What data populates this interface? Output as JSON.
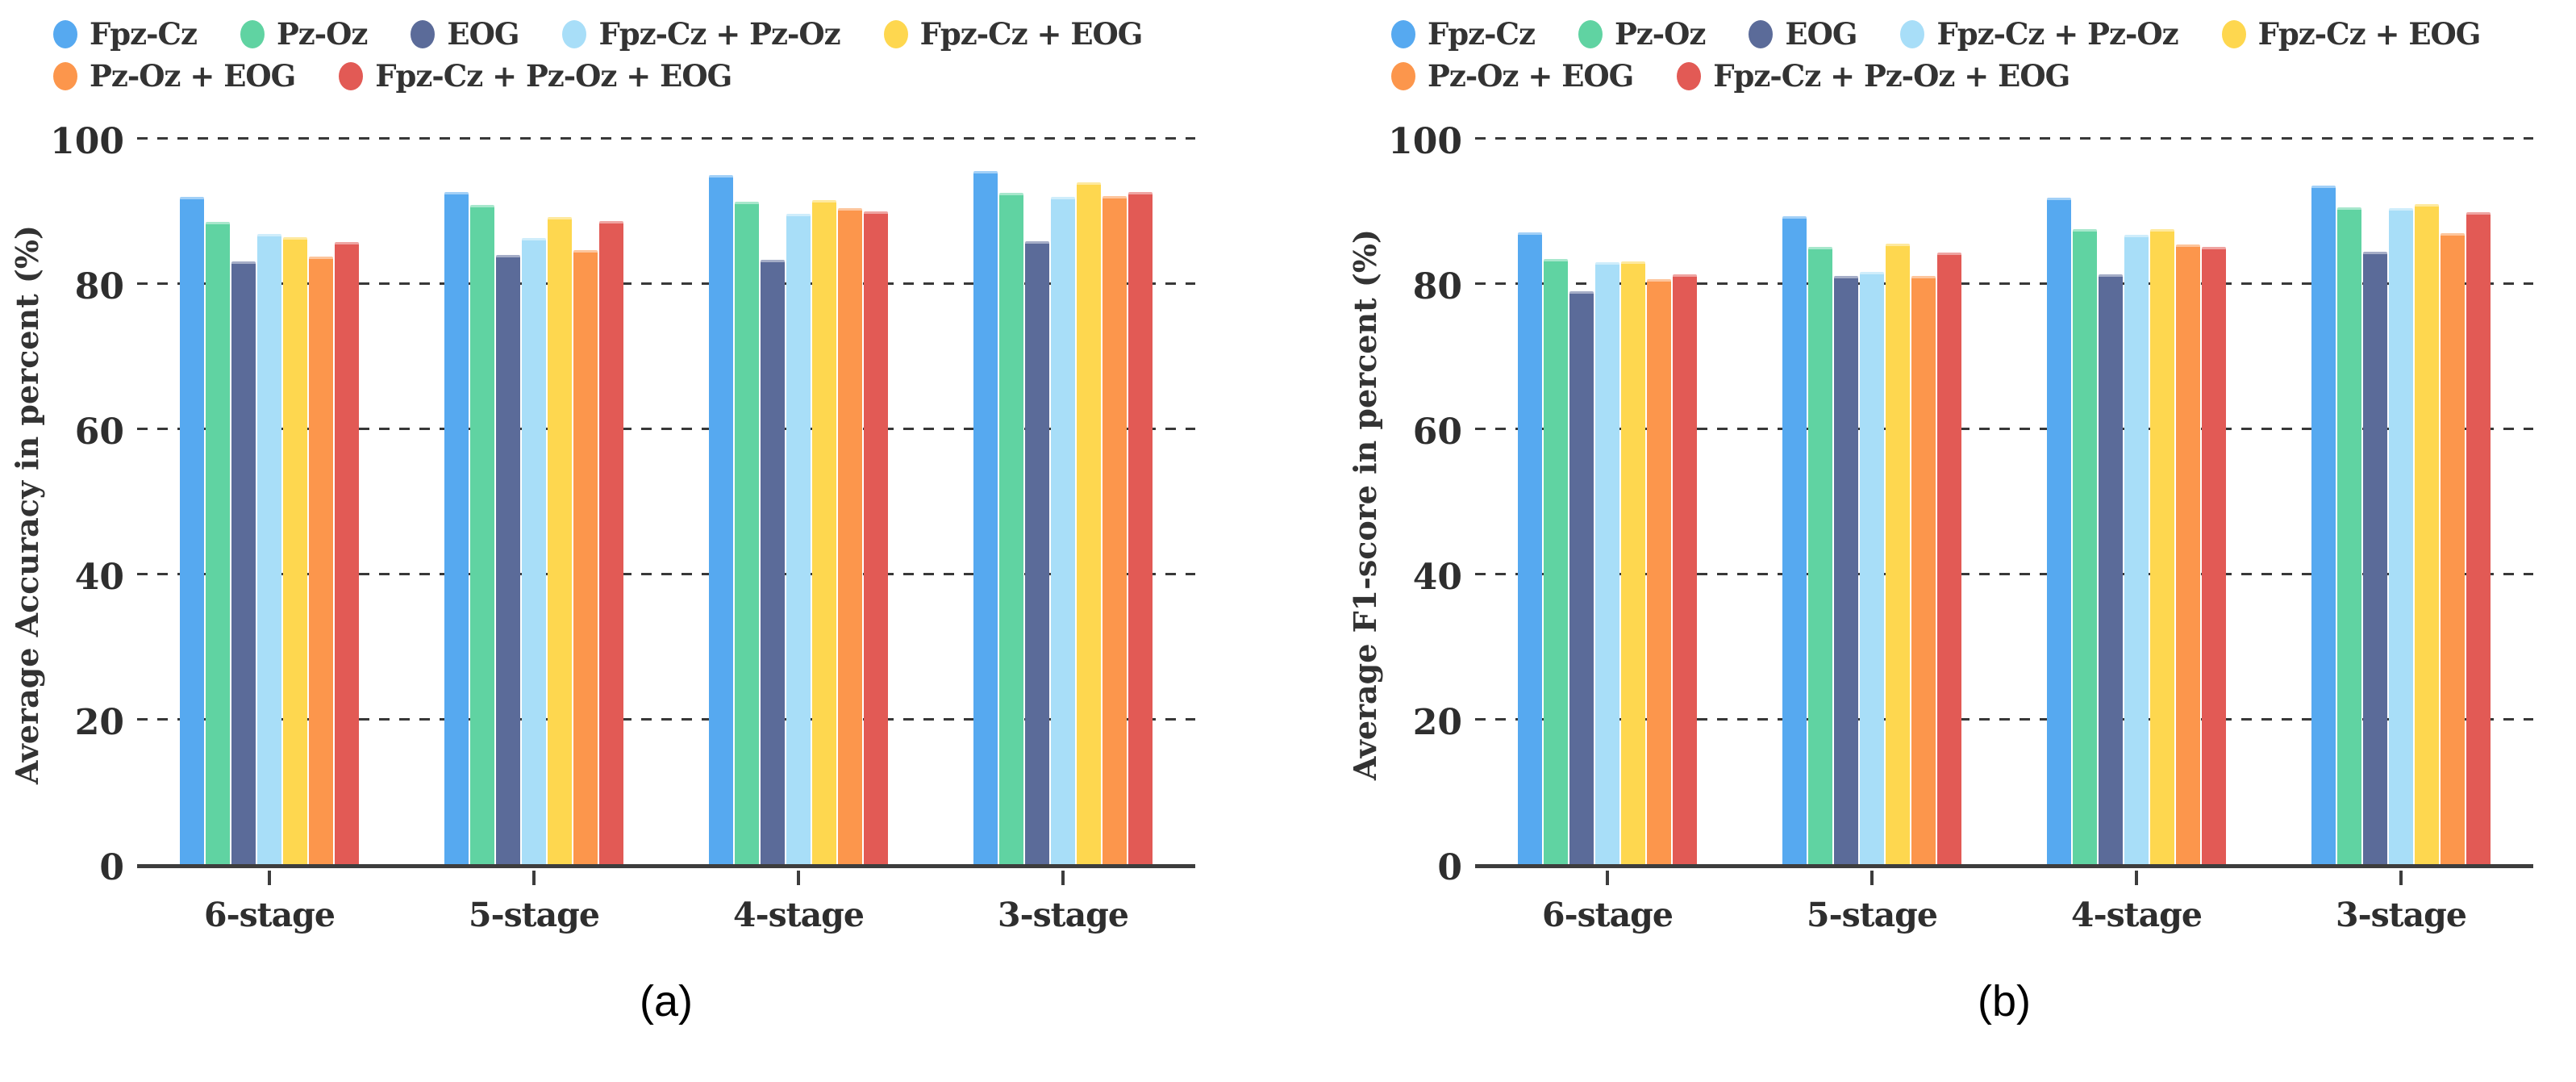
{
  "colors": {
    "axis": "#3d3d3d",
    "text": "#2e2e2e",
    "background": "#ffffff"
  },
  "chart_data": [
    {
      "type": "bar",
      "title": "",
      "ylabel": "Average Accuracy in percent (%)",
      "xlabel": "",
      "caption": "(a)",
      "categories": [
        "6-stage",
        "5-stage",
        "4-stage",
        "3-stage"
      ],
      "yticks": [
        0,
        20,
        40,
        60,
        80,
        100
      ],
      "ylim": [
        0,
        100
      ],
      "grid": "horizontal-dashed",
      "legend_position": "top-left",
      "series": [
        {
          "name": "Fpz-Cz",
          "color": "#56A9F0",
          "values": [
            91.9,
            92.6,
            94.9,
            95.5
          ]
        },
        {
          "name": "Pz-Oz",
          "color": "#60D3A2",
          "values": [
            88.4,
            90.8,
            91.2,
            92.4
          ]
        },
        {
          "name": "EOG",
          "color": "#5B6B99",
          "values": [
            83.0,
            83.9,
            83.2,
            85.8
          ]
        },
        {
          "name": "Fpz-Cz + Pz-Oz",
          "color": "#A8DEF8",
          "values": [
            86.8,
            86.2,
            89.6,
            91.9
          ]
        },
        {
          "name": "Fpz-Cz + EOG",
          "color": "#FED74F",
          "values": [
            86.3,
            89.1,
            91.4,
            93.9
          ]
        },
        {
          "name": "Pz-Oz + EOG",
          "color": "#FC964C",
          "values": [
            83.7,
            84.6,
            90.3,
            92.0
          ]
        },
        {
          "name": "Fpz-Cz + Pz-Oz + EOG",
          "color": "#E25A55",
          "values": [
            85.7,
            88.6,
            89.9,
            92.6
          ]
        }
      ]
    },
    {
      "type": "bar",
      "title": "",
      "ylabel": "Average F1-score in percent (%)",
      "xlabel": "",
      "caption": "(b)",
      "categories": [
        "6-stage",
        "5-stage",
        "4-stage",
        "3-stage"
      ],
      "yticks": [
        0,
        20,
        40,
        60,
        80,
        100
      ],
      "ylim": [
        0,
        100
      ],
      "grid": "horizontal-dashed",
      "legend_position": "top-left",
      "series": [
        {
          "name": "Fpz-Cz",
          "color": "#56A9F0",
          "values": [
            87.0,
            89.2,
            91.8,
            93.5
          ]
        },
        {
          "name": "Pz-Oz",
          "color": "#60D3A2",
          "values": [
            83.3,
            85.0,
            87.4,
            90.4
          ]
        },
        {
          "name": "EOG",
          "color": "#5B6B99",
          "values": [
            78.9,
            81.0,
            81.2,
            84.3
          ]
        },
        {
          "name": "Fpz-Cz + Pz-Oz",
          "color": "#A8DEF8",
          "values": [
            82.9,
            81.6,
            86.7,
            90.3
          ]
        },
        {
          "name": "Fpz-Cz + EOG",
          "color": "#FED74F",
          "values": [
            83.0,
            85.4,
            87.5,
            90.9
          ]
        },
        {
          "name": "Pz-Oz + EOG",
          "color": "#FC964C",
          "values": [
            80.6,
            81.0,
            85.3,
            86.9
          ]
        },
        {
          "name": "Fpz-Cz + Pz-Oz + EOG",
          "color": "#E25A55",
          "values": [
            81.2,
            84.2,
            85.0,
            89.8
          ]
        }
      ]
    }
  ]
}
